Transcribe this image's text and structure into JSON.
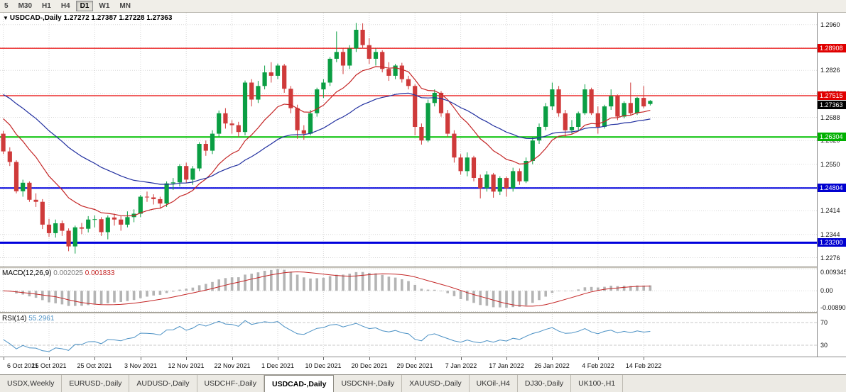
{
  "toolbar": {
    "buttons": [
      "5",
      "M30",
      "H1",
      "H4",
      "D1",
      "W1",
      "MN"
    ],
    "active": "D1"
  },
  "chart_title": {
    "arrow": "▼",
    "symbol": "USDCAD-,Daily",
    "ohlc": "1.27272 1.27387 1.27228 1.27363"
  },
  "indicators": {
    "macd": {
      "label": "MACD(12,26,9)",
      "value_main": "0.002025",
      "value_signal": "0.001833"
    },
    "rsi": {
      "label": "RSI(14)",
      "value": "55.2961"
    }
  },
  "axis": {
    "macd_ticks": [
      {
        "v": 0.009345,
        "text": "0.009345"
      },
      {
        "v": 0,
        "text": "0.00"
      },
      {
        "v": -0.0089,
        "text": "-0.00890"
      }
    ],
    "rsi_levels": [
      {
        "v": 70,
        "text": "70"
      },
      {
        "v": 30,
        "text": "30"
      }
    ]
  },
  "tabs": {
    "items": [
      "USDX,Weekly",
      "EURUSD-,Daily",
      "AUDUSD-,Daily",
      "USDCHF-,Daily",
      "USDCAD-,Daily",
      "USDCNH-,Daily",
      "XAUUSD-,Daily",
      "UKOil-,H4",
      "DJ30-,Daily",
      "UK100-,H1"
    ],
    "active_index": 4
  },
  "chart_data": {
    "type": "candlestick",
    "symbol": "USDCAD-",
    "timeframe": "Daily",
    "current_bar": {
      "open": 1.27272,
      "high": 1.27387,
      "low": 1.27228,
      "close": 1.27363
    },
    "x_labels": [
      "6 Oct 2021",
      "15 Oct 2021",
      "25 Oct 2021",
      "3 Nov 2021",
      "12 Nov 2021",
      "22 Nov 2021",
      "1 Dec 2021",
      "10 Dec 2021",
      "20 Dec 2021",
      "29 Dec 2021",
      "7 Jan 2022",
      "17 Jan 2022",
      "26 Jan 2022",
      "4 Feb 2022",
      "14 Feb 2022"
    ],
    "label_step": 7,
    "slots": 125,
    "price_range": [
      1.225,
      1.2995
    ],
    "price_ticks": [
      1.296,
      1.2892,
      1.2826,
      1.2758,
      1.2688,
      1.262,
      1.255,
      1.2482,
      1.2414,
      1.2344,
      1.2276
    ],
    "hlines": [
      {
        "price": 1.28908,
        "label": "1.28908",
        "color": "#e80000",
        "badge_bg": "#e00000",
        "width": 1.3
      },
      {
        "price": 1.27515,
        "label": "1.27515",
        "color": "#e80000",
        "badge_bg": "#e00000",
        "width": 1.3
      },
      {
        "price": 1.26304,
        "label": "1.26304",
        "color": "#00c000",
        "badge_bg": "#00b000",
        "width": 2
      },
      {
        "price": 1.24804,
        "label": "1.24804",
        "color": "#0000dd",
        "badge_bg": "#0000d0",
        "width": 2
      },
      {
        "price": 1.232,
        "label": "1.23200",
        "color": "#0000dd",
        "badge_bg": "#0000d0",
        "width": 3
      }
    ],
    "current_price_badge": {
      "price": 1.27363,
      "label": "1.27363",
      "bg": "#000000"
    },
    "colors": {
      "bull": "#0a9e43",
      "bear": "#cf3a3a",
      "ma_fast": "#c42525",
      "ma_slow": "#2230a0",
      "macd_hist": "#b4b4b4",
      "macd_signal": "#c42525",
      "rsi_line": "#4a90c4",
      "grid": "#d8d8d8",
      "level": "#c8c8c8"
    },
    "moving_averages": [
      {
        "period": 13,
        "seed": 1.27
      },
      {
        "period": 34,
        "seed": 1.2765
      }
    ],
    "macd": {
      "fast": 12,
      "slow": 26,
      "signal": 9,
      "range": [
        -0.0089,
        0.009345
      ]
    },
    "rsi": {
      "period": 14,
      "range": [
        10,
        85
      ],
      "levels": [
        70,
        30
      ]
    },
    "candles": [
      [
        1.264,
        1.2648,
        1.258,
        1.2588
      ],
      [
        1.2588,
        1.26,
        1.2545,
        1.2557
      ],
      [
        1.2557,
        1.2562,
        1.2465,
        1.2471
      ],
      [
        1.2471,
        1.2505,
        1.2455,
        1.2496
      ],
      [
        1.2496,
        1.25,
        1.244,
        1.2446
      ],
      [
        1.2446,
        1.2465,
        1.2425,
        1.244
      ],
      [
        1.244,
        1.2448,
        1.236,
        1.2373
      ],
      [
        1.2373,
        1.239,
        1.2337,
        1.2348
      ],
      [
        1.2348,
        1.2388,
        1.2335,
        1.2377
      ],
      [
        1.2377,
        1.2385,
        1.234,
        1.2355
      ],
      [
        1.2355,
        1.2362,
        1.2295,
        1.2309
      ],
      [
        1.2309,
        1.237,
        1.2288,
        1.2365
      ],
      [
        1.2365,
        1.2378,
        1.2345,
        1.2361
      ],
      [
        1.2361,
        1.2398,
        1.235,
        1.2388
      ],
      [
        1.2388,
        1.24,
        1.2365,
        1.2389
      ],
      [
        1.2389,
        1.2395,
        1.234,
        1.2351
      ],
      [
        1.2351,
        1.24,
        1.233,
        1.2394
      ],
      [
        1.2394,
        1.2405,
        1.237,
        1.2388
      ],
      [
        1.2388,
        1.2398,
        1.2355,
        1.2373
      ],
      [
        1.2373,
        1.2412,
        1.2365,
        1.2395
      ],
      [
        1.2395,
        1.2418,
        1.238,
        1.2405
      ],
      [
        1.2405,
        1.246,
        1.2395,
        1.2455
      ],
      [
        1.2455,
        1.247,
        1.244,
        1.2453
      ],
      [
        1.2453,
        1.2462,
        1.2432,
        1.2448
      ],
      [
        1.2448,
        1.2455,
        1.242,
        1.2435
      ],
      [
        1.2435,
        1.25,
        1.2425,
        1.2494
      ],
      [
        1.2494,
        1.251,
        1.2475,
        1.2497
      ],
      [
        1.2497,
        1.255,
        1.2485,
        1.2545
      ],
      [
        1.2545,
        1.2555,
        1.2495,
        1.2505
      ],
      [
        1.2505,
        1.2545,
        1.249,
        1.2538
      ],
      [
        1.2538,
        1.2615,
        1.253,
        1.261
      ],
      [
        1.261,
        1.262,
        1.2575,
        1.259
      ],
      [
        1.259,
        1.265,
        1.258,
        1.264
      ],
      [
        1.264,
        1.2708,
        1.263,
        1.27
      ],
      [
        1.27,
        1.2715,
        1.2655,
        1.267
      ],
      [
        1.267,
        1.268,
        1.264,
        1.2665
      ],
      [
        1.2665,
        1.2675,
        1.263,
        1.2645
      ],
      [
        1.2645,
        1.2796,
        1.2635,
        1.279
      ],
      [
        1.279,
        1.28,
        1.272,
        1.274
      ],
      [
        1.274,
        1.2795,
        1.273,
        1.278
      ],
      [
        1.278,
        1.284,
        1.277,
        1.282
      ],
      [
        1.282,
        1.285,
        1.279,
        1.281
      ],
      [
        1.281,
        1.2846,
        1.28,
        1.284
      ],
      [
        1.284,
        1.2845,
        1.276,
        1.2772
      ],
      [
        1.2772,
        1.278,
        1.27,
        1.2715
      ],
      [
        1.2715,
        1.2725,
        1.2625,
        1.265
      ],
      [
        1.265,
        1.2665,
        1.2622,
        1.264
      ],
      [
        1.264,
        1.271,
        1.2635,
        1.27
      ],
      [
        1.27,
        1.2775,
        1.269,
        1.277
      ],
      [
        1.277,
        1.28,
        1.2745,
        1.279
      ],
      [
        1.279,
        1.2865,
        1.278,
        1.286
      ],
      [
        1.286,
        1.294,
        1.285,
        1.288
      ],
      [
        1.288,
        1.289,
        1.2815,
        1.284
      ],
      [
        1.284,
        1.29,
        1.283,
        1.289
      ],
      [
        1.289,
        1.2965,
        1.288,
        1.2945
      ],
      [
        1.2945,
        1.2964,
        1.289,
        1.29
      ],
      [
        1.29,
        1.292,
        1.2845,
        1.286
      ],
      [
        1.286,
        1.289,
        1.284,
        1.288
      ],
      [
        1.288,
        1.2885,
        1.282,
        1.283
      ],
      [
        1.283,
        1.285,
        1.2795,
        1.281
      ],
      [
        1.281,
        1.2845,
        1.28,
        1.284
      ],
      [
        1.284,
        1.2848,
        1.279,
        1.28
      ],
      [
        1.28,
        1.281,
        1.277,
        1.278
      ],
      [
        1.278,
        1.2785,
        1.2635,
        1.266
      ],
      [
        1.266,
        1.267,
        1.2608,
        1.262
      ],
      [
        1.262,
        1.274,
        1.2615,
        1.273
      ],
      [
        1.273,
        1.277,
        1.272,
        1.276
      ],
      [
        1.276,
        1.2765,
        1.269,
        1.27
      ],
      [
        1.27,
        1.271,
        1.263,
        1.264
      ],
      [
        1.264,
        1.265,
        1.2555,
        1.257
      ],
      [
        1.257,
        1.258,
        1.252,
        1.253
      ],
      [
        1.253,
        1.2585,
        1.2515,
        1.257
      ],
      [
        1.257,
        1.2575,
        1.25,
        1.251
      ],
      [
        1.251,
        1.252,
        1.245,
        1.248
      ],
      [
        1.248,
        1.253,
        1.247,
        1.252
      ],
      [
        1.252,
        1.2525,
        1.2452,
        1.247
      ],
      [
        1.247,
        1.2515,
        1.246,
        1.251
      ],
      [
        1.251,
        1.2515,
        1.2455,
        1.248
      ],
      [
        1.248,
        1.254,
        1.247,
        1.253
      ],
      [
        1.253,
        1.2538,
        1.249,
        1.25
      ],
      [
        1.25,
        1.257,
        1.2495,
        1.256
      ],
      [
        1.256,
        1.263,
        1.255,
        1.262
      ],
      [
        1.262,
        1.267,
        1.261,
        1.266
      ],
      [
        1.266,
        1.273,
        1.265,
        1.272
      ],
      [
        1.272,
        1.279,
        1.271,
        1.277
      ],
      [
        1.277,
        1.278,
        1.269,
        1.27
      ],
      [
        1.27,
        1.271,
        1.263,
        1.265
      ],
      [
        1.265,
        1.268,
        1.264,
        1.266
      ],
      [
        1.266,
        1.2705,
        1.265,
        1.27
      ],
      [
        1.27,
        1.2785,
        1.2695,
        1.277
      ],
      [
        1.277,
        1.2775,
        1.2695,
        1.27
      ],
      [
        1.27,
        1.272,
        1.264,
        1.266
      ],
      [
        1.266,
        1.2725,
        1.2655,
        1.272
      ],
      [
        1.272,
        1.277,
        1.271,
        1.275
      ],
      [
        1.275,
        1.2755,
        1.268,
        1.269
      ],
      [
        1.269,
        1.2735,
        1.2685,
        1.273
      ],
      [
        1.273,
        1.279,
        1.2695,
        1.27
      ],
      [
        1.27,
        1.2748,
        1.2695,
        1.2745
      ],
      [
        1.2745,
        1.278,
        1.2715,
        1.272
      ],
      [
        1.27272,
        1.27387,
        1.27228,
        1.27363
      ]
    ]
  }
}
